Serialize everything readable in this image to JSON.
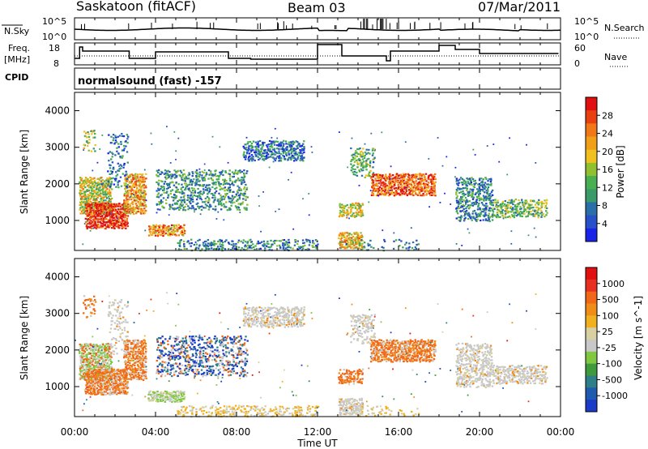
{
  "header": {
    "station": "Saskatoon (fitACF)",
    "beam": "Beam 03",
    "date": "07/Mar/2011"
  },
  "top_panel": {
    "left_label": "N.Sky",
    "right_label": "N.Search",
    "left_ticks": [
      "10^5",
      "10^0"
    ],
    "right_ticks": [
      "10^5",
      "10^0"
    ]
  },
  "freq_panel": {
    "left_label_1": "Freq.",
    "left_label_2": "[MHz]",
    "right_label": "Nave",
    "left_ticks": [
      "18",
      "8"
    ],
    "right_ticks": [
      "60",
      "0"
    ]
  },
  "cpid": {
    "label": "CPID",
    "value": "normalsound (fast) -157"
  },
  "colors": {
    "power_scale": [
      "#1a24e8",
      "#2850c8",
      "#2a6fa8",
      "#3a9a68",
      "#48b050",
      "#90c030",
      "#f0c020",
      "#f0a018",
      "#f07818",
      "#e84010",
      "#e01010"
    ],
    "velocity_scale": [
      "#1a3cc8",
      "#1e5ab0",
      "#2f7f88",
      "#3f9a3c",
      "#80c840",
      "#c8c8c8",
      "#d8d0a0",
      "#f0b020",
      "#f08c18",
      "#f06818",
      "#e83020",
      "#e01010"
    ]
  },
  "chart_data": [
    {
      "type": "heatmap",
      "name": "power",
      "ylabel": "Slant Range [km]",
      "yticks": [
        "1000",
        "2000",
        "3000",
        "4000"
      ],
      "ylim": [
        180,
        4500
      ],
      "xlim_hours": [
        0,
        24
      ],
      "colorbar_label": "Power [dB]",
      "colorbar_ticks": [
        "4",
        "8",
        "12",
        "16",
        "20",
        "24",
        "28"
      ],
      "colorbar_range": [
        0,
        32
      ]
    },
    {
      "type": "heatmap",
      "name": "velocity",
      "ylabel": "Slant Range [km]",
      "yticks": [
        "1000",
        "2000",
        "3000",
        "4000"
      ],
      "ylim": [
        180,
        4500
      ],
      "xlim_hours": [
        0,
        24
      ],
      "colorbar_label": "Velocity [m s^-1]",
      "colorbar_ticks": [
        "1000",
        "500",
        "100",
        "25",
        "-25",
        "-100",
        "-500",
        "-1000"
      ]
    }
  ],
  "x_axis": {
    "label": "Time UT",
    "ticks": [
      "00:00",
      "04:00",
      "08:00",
      "12:00",
      "16:00",
      "20:00",
      "00:00"
    ]
  }
}
